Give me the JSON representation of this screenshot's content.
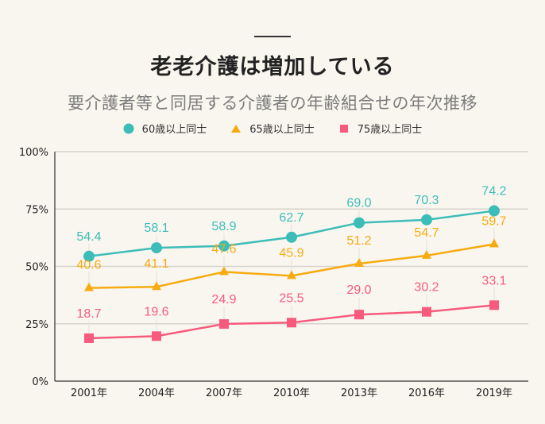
{
  "header": {
    "title": "老老介護は増加している",
    "subtitle": "要介護者等と同居する介護者の年齢組合せの年次推移"
  },
  "chart_data": {
    "type": "line",
    "title": "老老介護は増加している",
    "subtitle": "要介護者等と同居する介護者の年齢組合せの年次推移",
    "xlabel": "",
    "ylabel": "",
    "categories": [
      "2001年",
      "2004年",
      "2007年",
      "2010年",
      "2013年",
      "2016年",
      "2019年"
    ],
    "ylim": [
      0,
      100
    ],
    "yticks": [
      0,
      25,
      50,
      75,
      100
    ],
    "ytick_labels": [
      "0%",
      "25%",
      "50%",
      "75%",
      "100%"
    ],
    "grid": true,
    "legend_position": "top-center",
    "series": [
      {
        "name": "60歳以上同士",
        "marker": "circle",
        "color": "#3dbdb8",
        "values": [
          54.4,
          58.1,
          58.9,
          62.7,
          69.0,
          70.3,
          74.2
        ],
        "labels": [
          "54.4",
          "58.1",
          "58.9",
          "62.7",
          "69.0",
          "70.3",
          "74.2"
        ]
      },
      {
        "name": "65歳以上同士",
        "marker": "triangle",
        "color": "#f7ab10",
        "values": [
          40.6,
          41.1,
          47.6,
          45.9,
          51.2,
          54.7,
          59.7
        ],
        "labels": [
          "40.6",
          "41.1",
          "47.6",
          "45.9",
          "51.2",
          "54.7",
          "59.7"
        ]
      },
      {
        "name": "75歳以上同士",
        "marker": "square",
        "color": "#f75a7c",
        "values": [
          18.7,
          19.6,
          24.9,
          25.5,
          29.0,
          30.2,
          33.1
        ],
        "labels": [
          "18.7",
          "19.6",
          "24.9",
          "25.5",
          "29.0",
          "30.2",
          "33.1"
        ]
      }
    ]
  }
}
